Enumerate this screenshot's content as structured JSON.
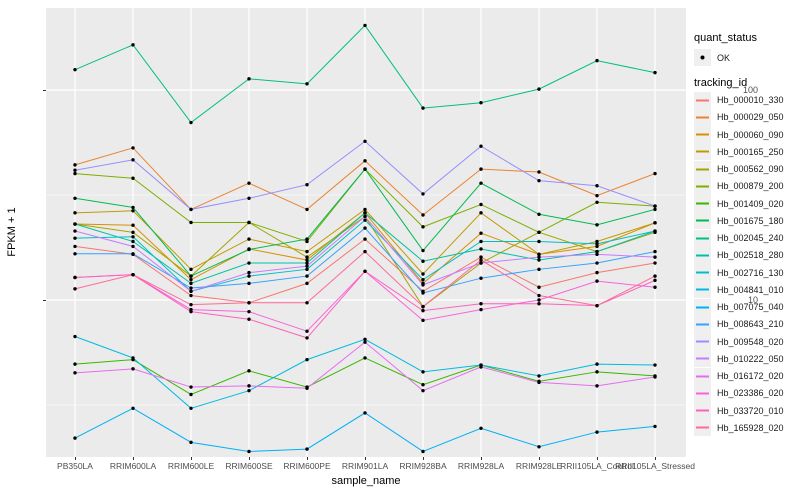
{
  "figure": {
    "panel_bg": "#EBEBEB",
    "grid_color": "#FFFFFF",
    "point_color": "#000000",
    "axis_text_color": "#4D4D4D"
  },
  "chart_data": {
    "type": "line",
    "xlabel": "sample_name",
    "ylabel": "FPKM + 1",
    "yscale": "log10",
    "ylim": [
      1.8,
      250
    ],
    "yticks": [
      10,
      100
    ],
    "ytick_labels": [
      "10",
      "100"
    ],
    "yminor": [
      3.162,
      31.62
    ],
    "grid": true,
    "legend_position": "right",
    "categories": [
      "PB350LA",
      "RRIM600LA",
      "RRIM600LE",
      "RRIM600SE",
      "RRIM600PE",
      "RRIM901LA",
      "RRIM928BA",
      "RRIM928LA",
      "RRIM928LE",
      "RRII105LA_Control",
      "RRII105LA_Stressed"
    ],
    "series": [
      {
        "name": "Hb_000010_330",
        "color": "#F8766D",
        "values": [
          18,
          16.5,
          10.5,
          9.7,
          12,
          19.5,
          11,
          16,
          11.5,
          13.5,
          15
        ]
      },
      {
        "name": "Hb_000029_050",
        "color": "#EA8331",
        "values": [
          44,
          53,
          27,
          36,
          27,
          46,
          25.4,
          42,
          40.7,
          31.4,
          40
        ]
      },
      {
        "name": "Hb_000060_090",
        "color": "#D89000",
        "values": [
          23,
          22.7,
          12.5,
          17.5,
          15.5,
          26,
          12,
          20.8,
          16.5,
          18,
          23.3
        ]
      },
      {
        "name": "Hb_000165_250",
        "color": "#C09B00",
        "values": [
          26,
          26.6,
          14,
          19.5,
          17,
          27,
          13.3,
          26,
          16.5,
          19,
          23.3
        ]
      },
      {
        "name": "Hb_000562_090",
        "color": "#A3A500",
        "values": [
          23,
          21,
          13,
          23.4,
          16,
          25,
          9.3,
          15,
          21,
          17,
          21
        ]
      },
      {
        "name": "Hb_000879_200",
        "color": "#7CAE00",
        "values": [
          40,
          38,
          23.4,
          23.4,
          19,
          42,
          22.3,
          28.5,
          21,
          29.2,
          28
        ]
      },
      {
        "name": "Hb_001409_020",
        "color": "#39B600",
        "values": [
          4.95,
          5.2,
          3.55,
          4.6,
          3.85,
          5.3,
          3.95,
          4.9,
          4.1,
          4.55,
          4.35
        ]
      },
      {
        "name": "Hb_001675_180",
        "color": "#00BB4E",
        "values": [
          30.5,
          27.6,
          13,
          17.4,
          19.5,
          42,
          17.2,
          36,
          25.6,
          22.8,
          27
        ]
      },
      {
        "name": "Hb_002045_240",
        "color": "#00BF7D",
        "values": [
          125,
          164,
          70,
          113,
          107,
          203,
          82,
          87,
          101,
          138,
          121
        ]
      },
      {
        "name": "Hb_002518_280",
        "color": "#00C1A3",
        "values": [
          23,
          19,
          12,
          15,
          15,
          26,
          15.3,
          17.5,
          15.5,
          17,
          21.3
        ]
      },
      {
        "name": "Hb_002716_130",
        "color": "#00BFC4",
        "values": [
          19.7,
          20,
          11,
          13,
          14,
          24,
          12.5,
          19,
          19,
          18.5,
          21.3
        ]
      },
      {
        "name": "Hb_004841_010",
        "color": "#00BAE0",
        "values": [
          6.7,
          5.3,
          3.05,
          3.7,
          5.2,
          6.5,
          4.55,
          4.9,
          4.35,
          4.95,
          4.9
        ]
      },
      {
        "name": "Hb_007075_040",
        "color": "#00B0F6",
        "values": [
          2.2,
          3.05,
          2.1,
          1.9,
          1.95,
          2.9,
          1.9,
          2.45,
          2.0,
          2.35,
          2.5
        ]
      },
      {
        "name": "Hb_008643_210",
        "color": "#35A2FF",
        "values": [
          16.6,
          16.6,
          11.4,
          12,
          13,
          22,
          10.8,
          12.7,
          14,
          15,
          17
        ]
      },
      {
        "name": "Hb_009548_020",
        "color": "#9590FF",
        "values": [
          41.5,
          46.5,
          27,
          30.5,
          35.4,
          57,
          32,
          54,
          37,
          35,
          28
        ]
      },
      {
        "name": "Hb_010222_050",
        "color": "#C77CFF",
        "values": [
          21.3,
          18,
          11,
          13.5,
          14.5,
          25,
          11.8,
          15,
          16,
          16.5,
          16
        ]
      },
      {
        "name": "Hb_016172_020",
        "color": "#E76BF3",
        "values": [
          4.5,
          4.7,
          3.85,
          3.9,
          3.8,
          6.3,
          3.7,
          4.8,
          4.05,
          3.9,
          4.3
        ]
      },
      {
        "name": "Hb_023386_020",
        "color": "#FA62DB",
        "values": [
          12.8,
          13.2,
          9,
          8.8,
          7.1,
          13.7,
          8.0,
          9.0,
          10,
          12.3,
          11.5
        ]
      },
      {
        "name": "Hb_033720_010",
        "color": "#FF62BC",
        "values": [
          12.8,
          13.2,
          8.8,
          8.1,
          6.6,
          13.7,
          8.9,
          9.6,
          9.6,
          9.4,
          12.4
        ]
      },
      {
        "name": "Hb_165928_020",
        "color": "#FF6A98",
        "values": [
          11.3,
          13.2,
          9.5,
          9.7,
          9.7,
          17,
          9.3,
          15.5,
          10.5,
          9.4,
          13
        ]
      }
    ],
    "legend": {
      "quant_status_title": "quant_status",
      "quant_status_items": [
        "OK"
      ],
      "tracking_id_title": "tracking_id"
    }
  }
}
